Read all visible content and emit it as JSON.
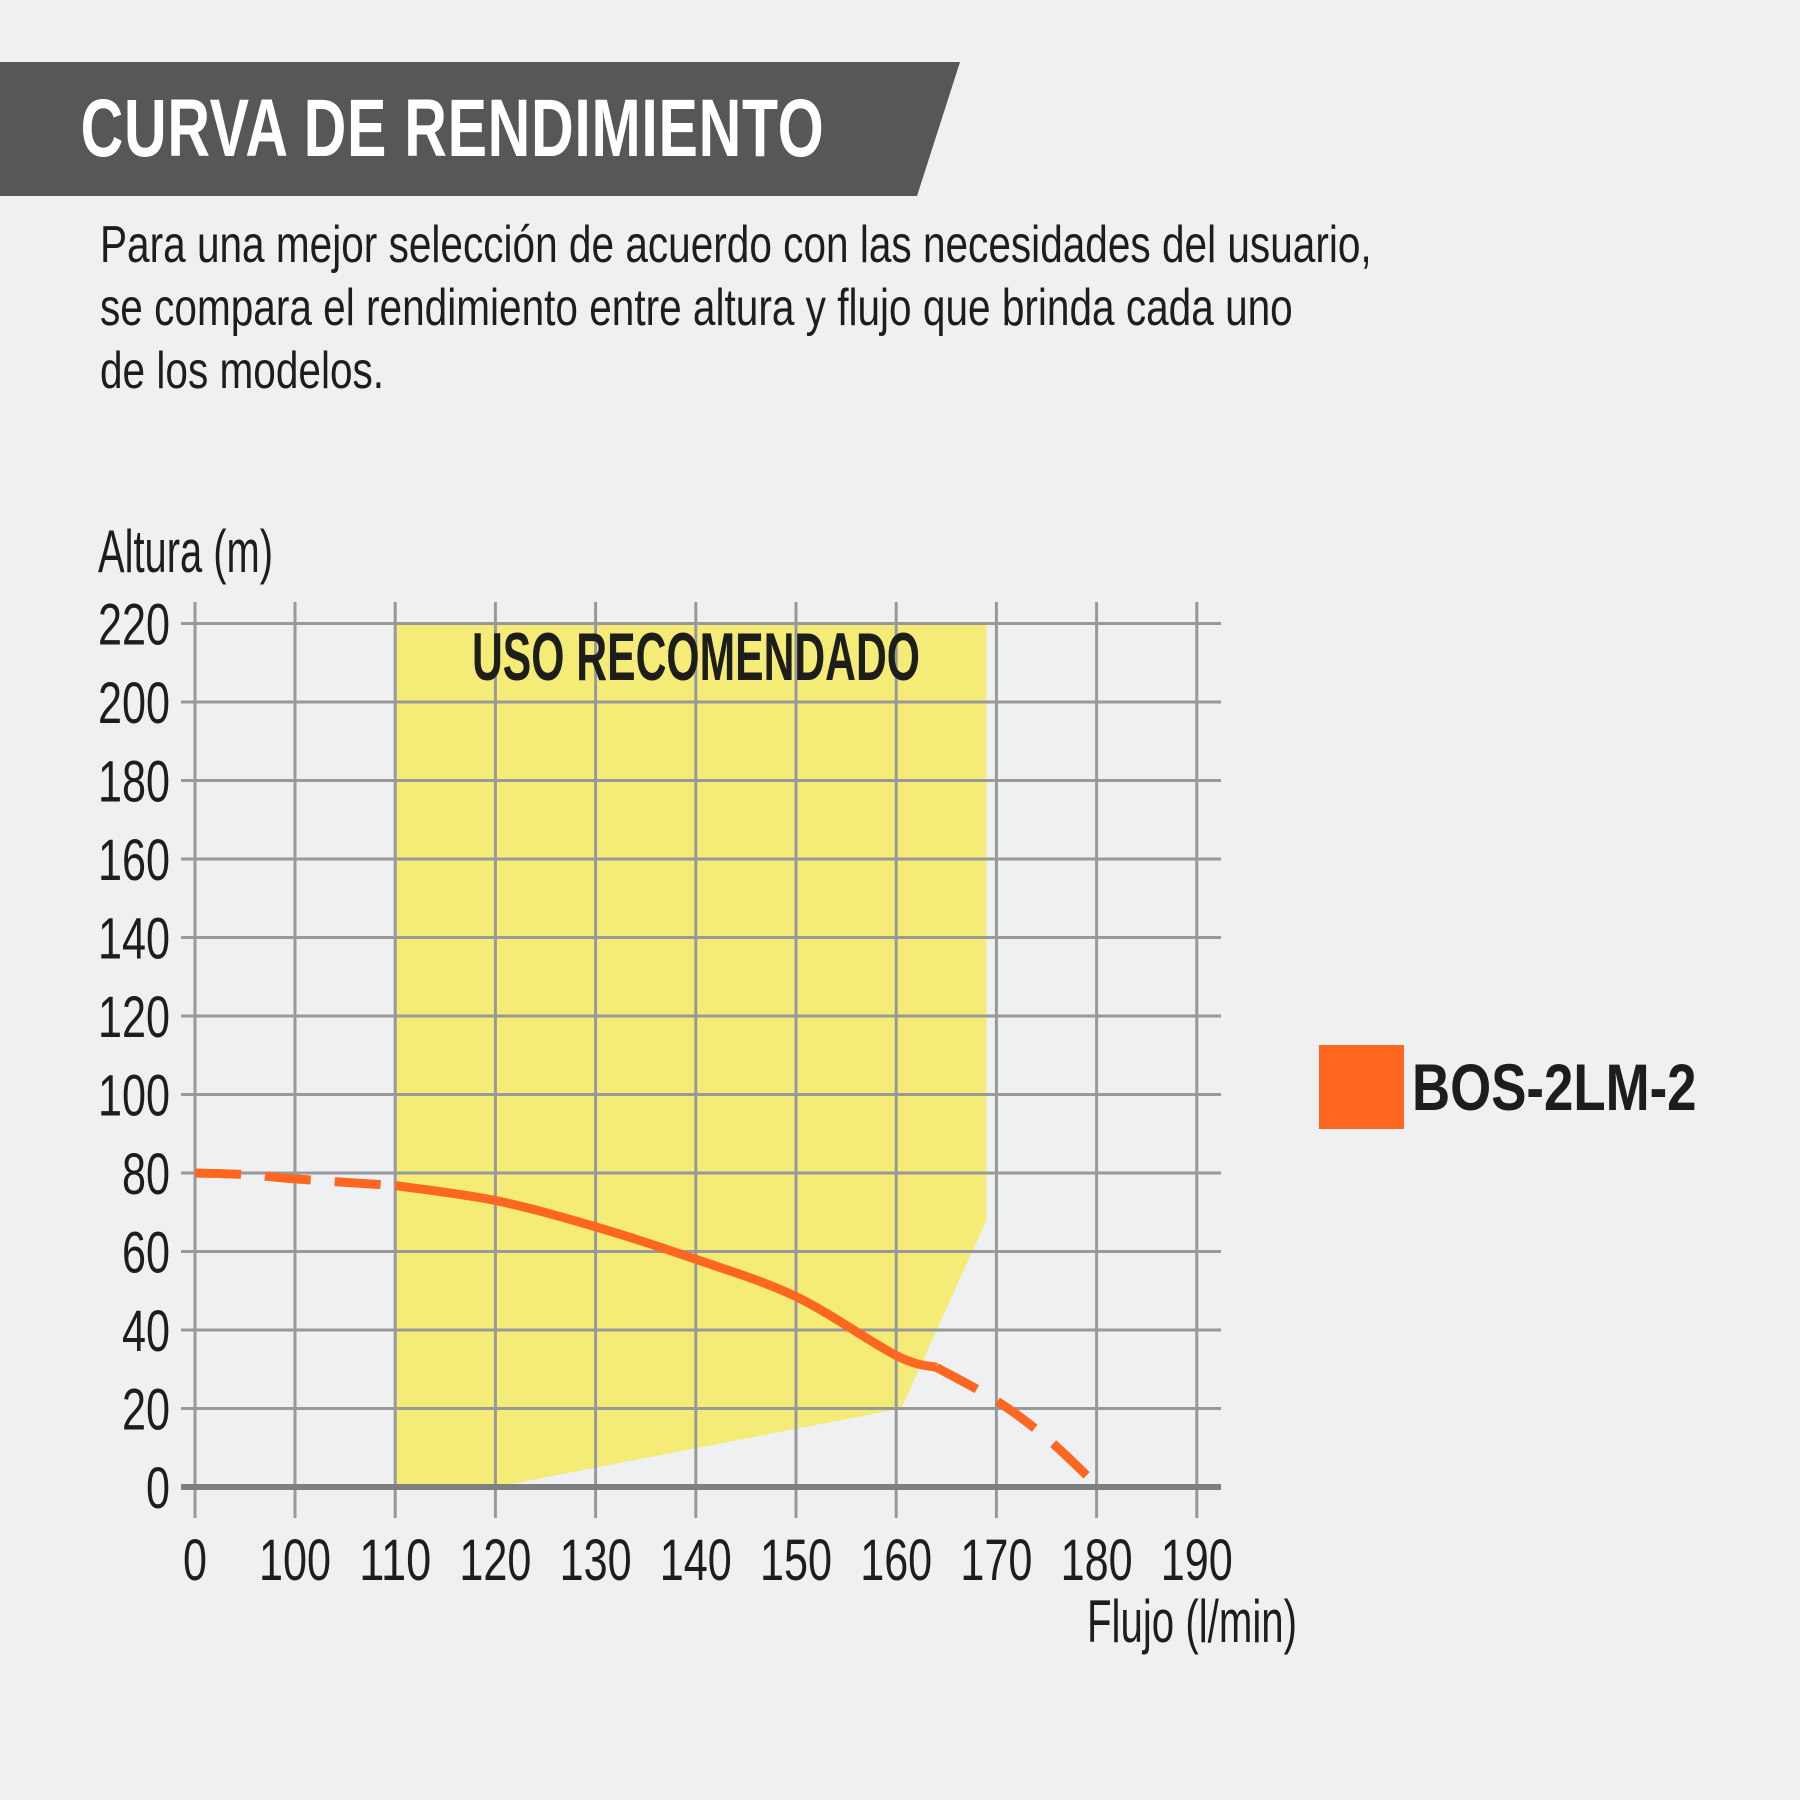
{
  "page": {
    "background": "#eef0f1",
    "text_color": "#1d1d1b"
  },
  "banner": {
    "title": "CURVA DE RENDIMIENTO",
    "background": "#575756",
    "text_color": "#ffffff"
  },
  "intro": {
    "lines": [
      "Para una mejor selección de acuerdo con las necesidades del usuario,",
      "se compara el rendimiento entre altura y flujo que brinda cada uno",
      "de los modelos."
    ]
  },
  "legend": {
    "label": "BOS-2LM-2",
    "color": "#ff6720"
  },
  "chart_data": {
    "type": "line",
    "title": "",
    "xlabel": "Flujo (l/min)",
    "ylabel": "Altura (m)",
    "x_ticks": [
      0,
      100,
      110,
      120,
      130,
      140,
      150,
      160,
      170,
      180,
      190
    ],
    "y_ticks": [
      0,
      20,
      40,
      60,
      80,
      100,
      120,
      140,
      160,
      180,
      200,
      220
    ],
    "x_axis_note": "non-linear axis: segment 0-100 spans one grid cell, then 10 l/min per cell",
    "ylim": [
      0,
      220
    ],
    "grid": true,
    "region_label": "USO RECOMENDADO",
    "recommended_region": [
      [
        110,
        220
      ],
      [
        169,
        220
      ],
      [
        169,
        68
      ],
      [
        160.5,
        20
      ],
      [
        120,
        0
      ],
      [
        110,
        0
      ]
    ],
    "colors": {
      "grid": "#97999b",
      "axis": "#7d7f81",
      "region_fill": "#f5ec78"
    },
    "series": [
      {
        "name": "BOS-2LM-2",
        "color": "#ff6720",
        "segments": [
          {
            "style": "dashed",
            "points": [
              [
                0,
                80
              ],
              [
                50,
                79.6
              ],
              [
                100,
                78.5
              ],
              [
                110,
                76.8
              ]
            ]
          },
          {
            "style": "solid",
            "points": [
              [
                110,
                76.8
              ],
              [
                120,
                73
              ],
              [
                130,
                66.3
              ],
              [
                140,
                58
              ],
              [
                150,
                48.5
              ],
              [
                160,
                33.5
              ],
              [
                164,
                30.5
              ]
            ]
          },
          {
            "style": "dashed",
            "points": [
              [
                164,
                30.5
              ],
              [
                170,
                22
              ],
              [
                175,
                12.5
              ],
              [
                180,
                0.5
              ]
            ]
          }
        ]
      }
    ],
    "legend_position": "right"
  }
}
